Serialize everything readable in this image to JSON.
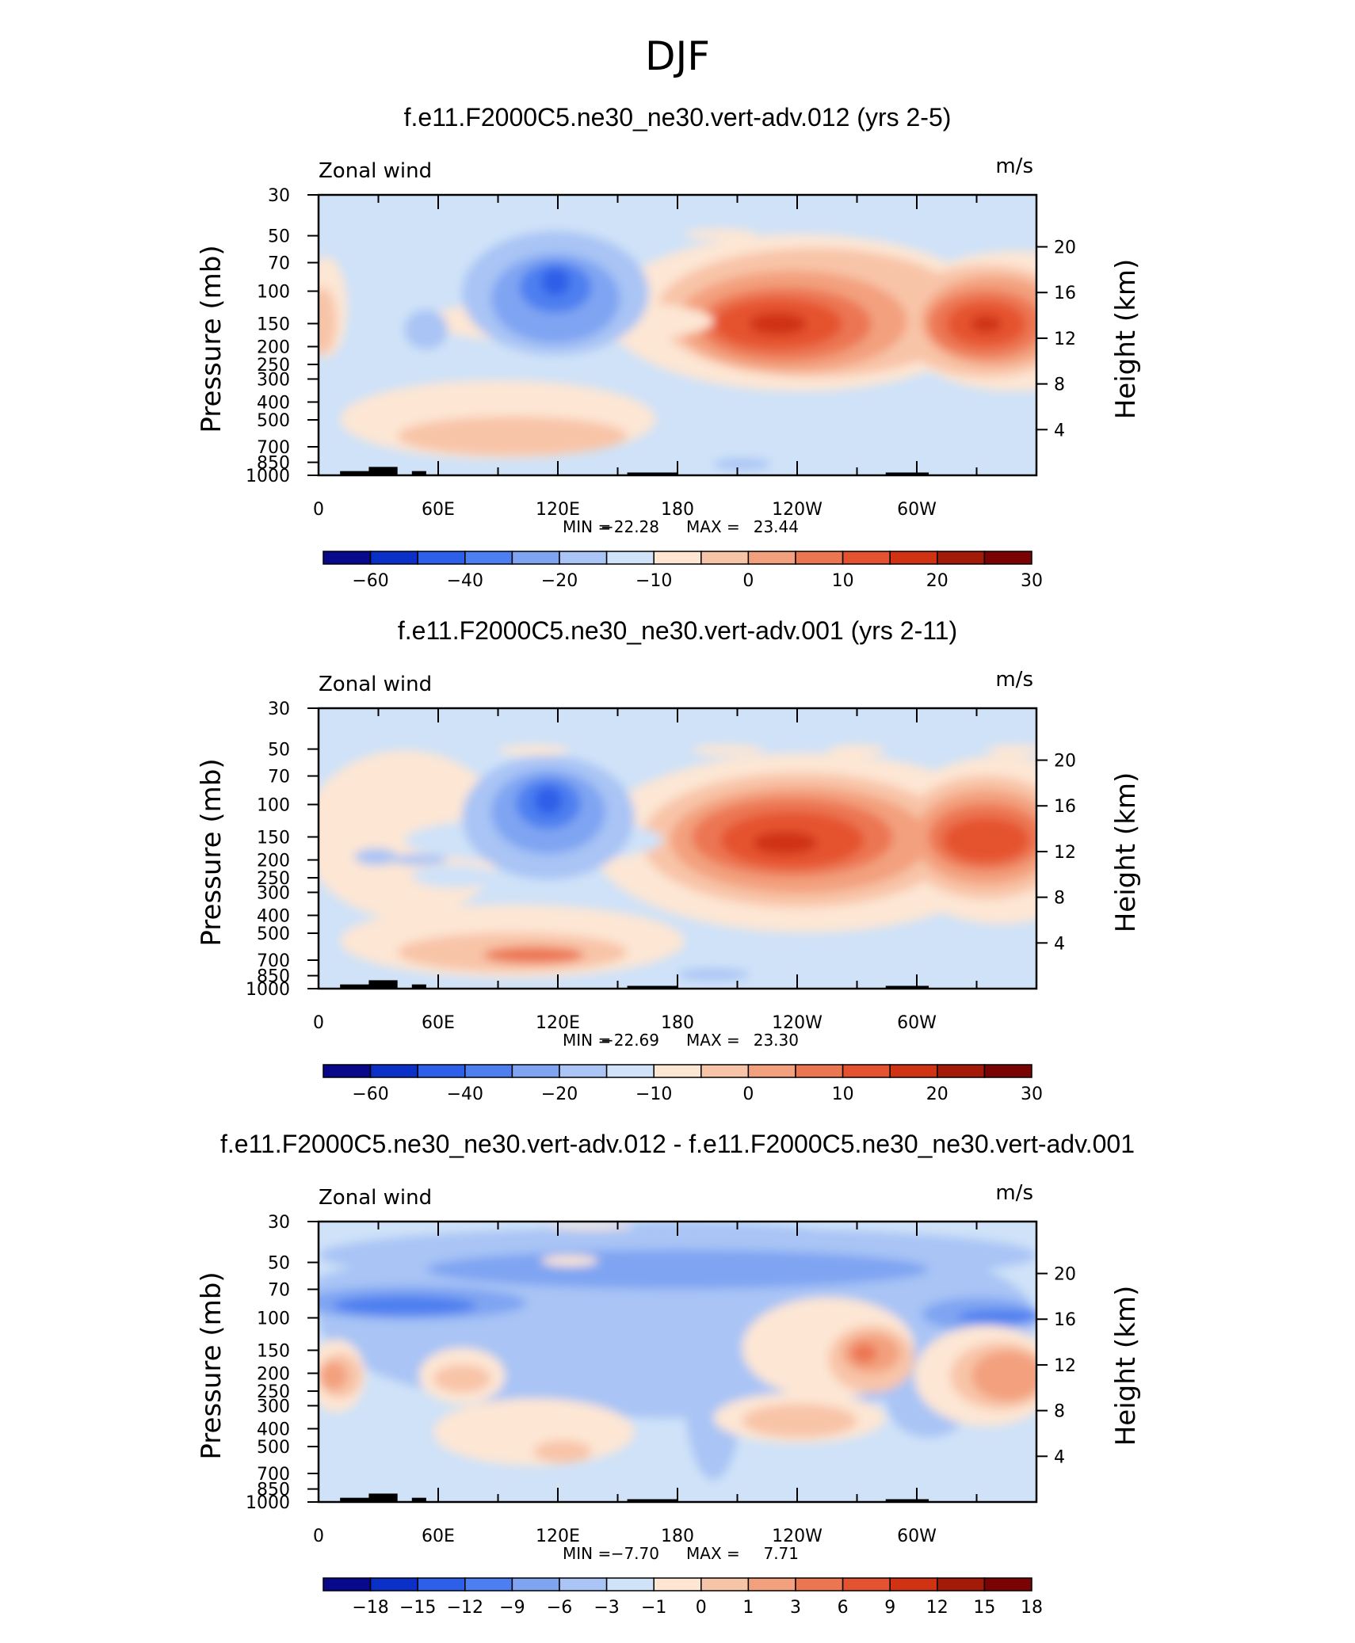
{
  "figure": {
    "title": "DJF"
  },
  "chart_data": [
    {
      "type": "heatmap",
      "title": "f.e11.F2000C5.ne30_ne30.vert-adv.012 (yrs 2-5)",
      "variable_label": "Zonal wind",
      "units": "m/s",
      "ylabel_left": "Pressure (mb)",
      "ylabel_right": "Height (km)",
      "x_ticks": [
        "0",
        "60E",
        "120E",
        "180",
        "120W",
        "60W"
      ],
      "pressure_ticks": [
        "30",
        "50",
        "70",
        "100",
        "150",
        "200",
        "250",
        "300",
        "400",
        "500",
        "700",
        "850",
        "1000"
      ],
      "height_ticks": [
        "20",
        "16",
        "12",
        "8",
        "4"
      ],
      "stats": {
        "min_label": "MIN =",
        "min": "−22.28",
        "max_label": "MAX =",
        "max": "23.44"
      },
      "colorbar": {
        "labels": [
          "−60",
          "−40",
          "−20",
          "−10",
          "0",
          "10",
          "20",
          "30"
        ],
        "colors": [
          "#08088a",
          "#0a30c8",
          "#2d5fe8",
          "#4d7ff0",
          "#7fa4f2",
          "#a9c4f5",
          "#cfe2f8",
          "#fde6d4",
          "#f8c4a8",
          "#f3a07e",
          "#ec7652",
          "#e5522f",
          "#cf3313",
          "#a31b08",
          "#7a0404"
        ]
      },
      "features": [
        {
          "lon": 230,
          "p": 150,
          "value": 23.44,
          "label": "max"
        },
        {
          "lon": 120,
          "p": 100,
          "value": -22.28,
          "label": "min"
        }
      ]
    },
    {
      "type": "heatmap",
      "title": "f.e11.F2000C5.ne30_ne30.vert-adv.001 (yrs 2-11)",
      "variable_label": "Zonal wind",
      "units": "m/s",
      "ylabel_left": "Pressure (mb)",
      "ylabel_right": "Height (km)",
      "x_ticks": [
        "0",
        "60E",
        "120E",
        "180",
        "120W",
        "60W"
      ],
      "pressure_ticks": [
        "30",
        "50",
        "70",
        "100",
        "150",
        "200",
        "250",
        "300",
        "400",
        "500",
        "700",
        "850",
        "1000"
      ],
      "height_ticks": [
        "20",
        "16",
        "12",
        "8",
        "4"
      ],
      "stats": {
        "min_label": "MIN =",
        "min": "−22.69",
        "max_label": "MAX =",
        "max": "23.30"
      },
      "colorbar": {
        "labels": [
          "−60",
          "−40",
          "−20",
          "−10",
          "0",
          "10",
          "20",
          "30"
        ],
        "colors": [
          "#08088a",
          "#0a30c8",
          "#2d5fe8",
          "#4d7ff0",
          "#7fa4f2",
          "#a9c4f5",
          "#cfe2f8",
          "#fde6d4",
          "#f8c4a8",
          "#f3a07e",
          "#ec7652",
          "#e5522f",
          "#cf3313",
          "#a31b08",
          "#7a0404"
        ]
      },
      "features": [
        {
          "lon": 225,
          "p": 150,
          "value": 23.3,
          "label": "max"
        },
        {
          "lon": 118,
          "p": 100,
          "value": -22.69,
          "label": "min"
        }
      ]
    },
    {
      "type": "heatmap",
      "title": "f.e11.F2000C5.ne30_ne30.vert-adv.012 - f.e11.F2000C5.ne30_ne30.vert-adv.001",
      "variable_label": "Zonal wind",
      "units": "m/s",
      "ylabel_left": "Pressure (mb)",
      "ylabel_right": "Height (km)",
      "x_ticks": [
        "0",
        "60E",
        "120E",
        "180",
        "120W",
        "60W"
      ],
      "pressure_ticks": [
        "30",
        "50",
        "70",
        "100",
        "150",
        "200",
        "250",
        "300",
        "400",
        "500",
        "700",
        "850",
        "1000"
      ],
      "height_ticks": [
        "20",
        "16",
        "12",
        "8",
        "4"
      ],
      "stats": {
        "min_label": "MIN =",
        "min": "−7.70",
        "max_label": "MAX =",
        "max": "7.71"
      },
      "colorbar": {
        "labels": [
          "−18",
          "−15",
          "−12",
          "−9",
          "−6",
          "−3",
          "−1",
          "0",
          "1",
          "3",
          "6",
          "9",
          "12",
          "15",
          "18"
        ],
        "colors": [
          "#08088a",
          "#0a30c8",
          "#2d5fe8",
          "#4d7ff0",
          "#7fa4f2",
          "#a9c4f5",
          "#cfe2f8",
          "#fde6d4",
          "#f8c4a8",
          "#f3a07e",
          "#ec7652",
          "#e5522f",
          "#cf3313",
          "#a31b08",
          "#7a0404"
        ]
      },
      "features": [
        {
          "lon": 272,
          "p": 150,
          "value": 7.71,
          "label": "max"
        },
        {
          "lon": 40,
          "p": 100,
          "value": -7.7,
          "label": "min"
        }
      ]
    }
  ]
}
